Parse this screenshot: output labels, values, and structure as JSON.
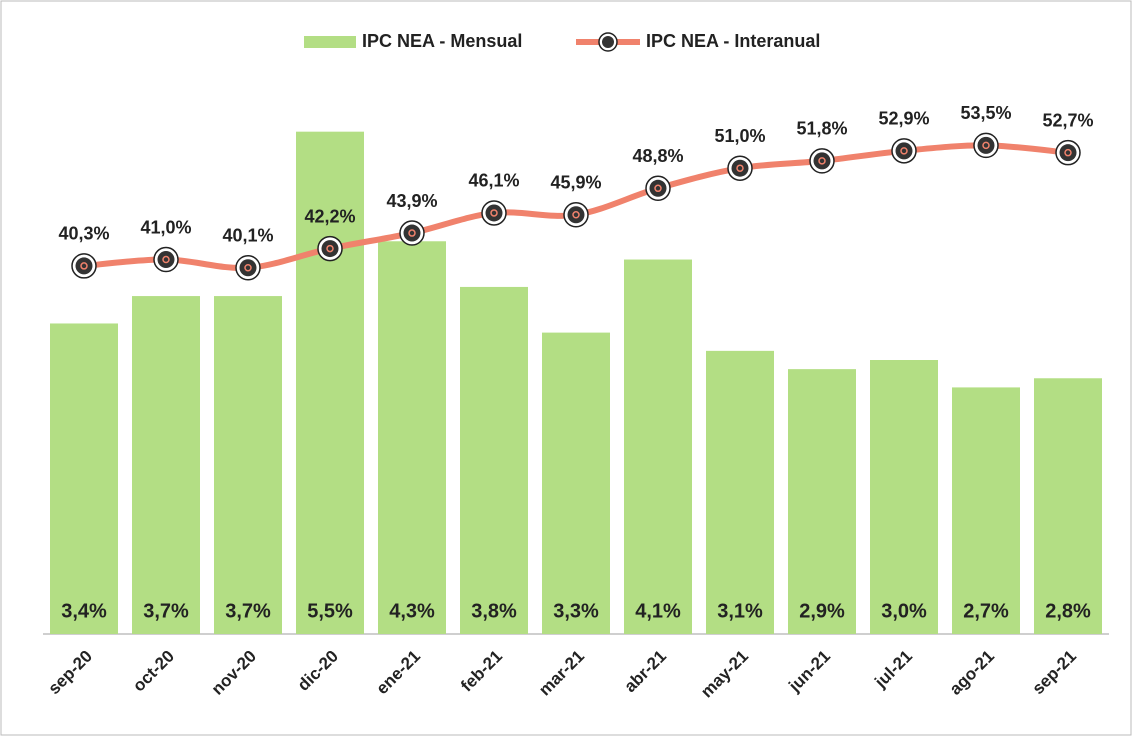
{
  "chart_data": {
    "type": "bar_line",
    "categories": [
      "sep-20",
      "oct-20",
      "nov-20",
      "dic-20",
      "ene-21",
      "feb-21",
      "mar-21",
      "abr-21",
      "may-21",
      "jun-21",
      "jul-21",
      "ago-21",
      "sep-21"
    ],
    "series": [
      {
        "name": "IPC NEA - Mensual",
        "type": "bar",
        "color": "#b3de84",
        "axis": "y",
        "values": [
          3.4,
          3.7,
          3.7,
          5.5,
          4.3,
          3.8,
          3.3,
          4.1,
          3.1,
          2.9,
          3.0,
          2.7,
          2.8
        ],
        "value_labels": [
          "3,4%",
          "3,7%",
          "3,7%",
          "5,5%",
          "4,3%",
          "3,8%",
          "3,3%",
          "4,1%",
          "3,1%",
          "2,9%",
          "3,0%",
          "2,7%",
          "2,8%"
        ]
      },
      {
        "name": "IPC NEA - Interanual",
        "type": "line",
        "color": "#f0826c",
        "axis": "y2",
        "values": [
          40.3,
          41.0,
          40.1,
          42.2,
          43.9,
          46.1,
          45.9,
          48.8,
          51.0,
          51.8,
          52.9,
          53.5,
          52.7
        ],
        "value_labels": [
          "40,3%",
          "41,0%",
          "40,1%",
          "42,2%",
          "43,9%",
          "46,1%",
          "45,9%",
          "48,8%",
          "51,0%",
          "51,8%",
          "52,9%",
          "53,5%",
          "52,7%"
        ]
      }
    ],
    "ylim": [
      0,
      6
    ],
    "y2lim": [
      0,
      60
    ],
    "legend": "top"
  }
}
